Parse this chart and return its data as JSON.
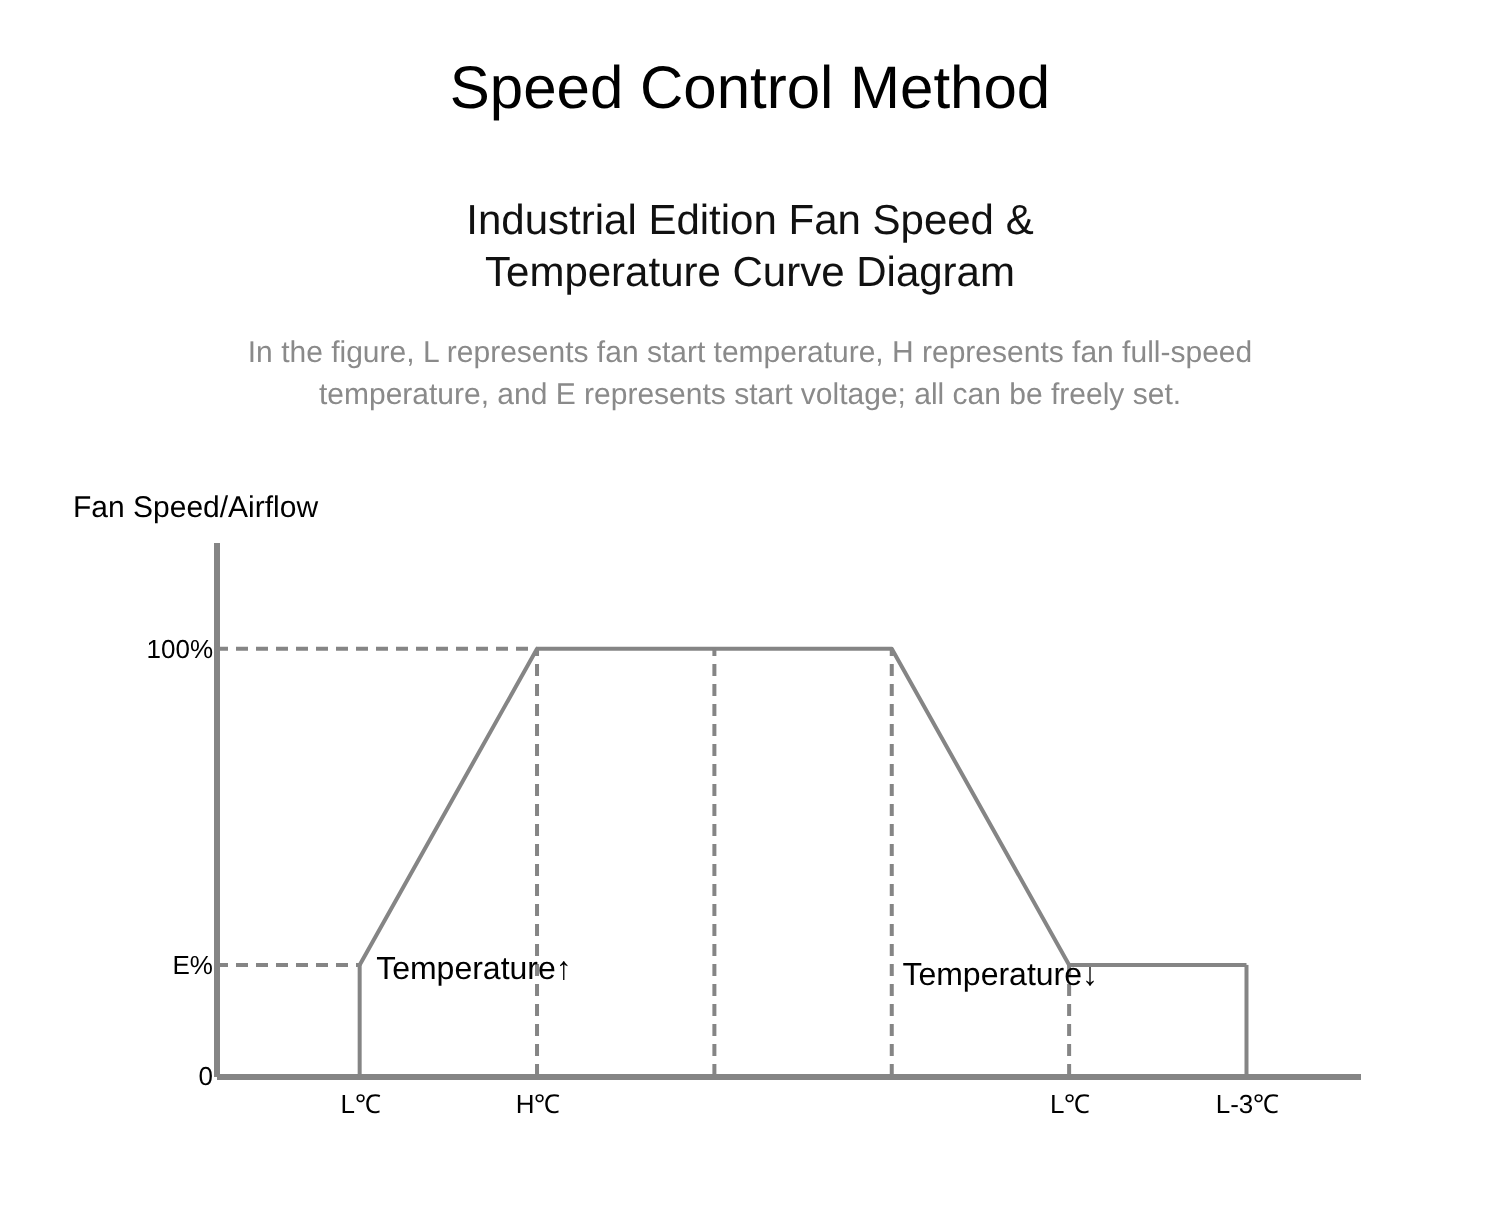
{
  "chart_data": {
    "type": "line",
    "title": "Speed Control Method",
    "subtitle": "Industrial Edition Fan Speed &\nTemperature Curve Diagram",
    "ylabel": "Fan Speed/Airflow",
    "annotations": [
      "In the figure, L represents fan start temperature, H represents fan full-speed\ntemperature, and E represents start voltage; all can be freely set.",
      "Temperature↑",
      "Temperature↓"
    ],
    "categories": [
      "L℃",
      "H℃",
      null,
      null,
      "L℃",
      "L-3℃"
    ],
    "ylim": [
      0,
      125
    ],
    "yticks": [
      {
        "value": 0,
        "label": "0"
      },
      {
        "value": 26,
        "label": "E%"
      },
      {
        "value": 100,
        "label": "100%"
      }
    ],
    "grid": "x",
    "marker": "none",
    "line_style": "solid",
    "series": [
      {
        "color": "#858585",
        "values": [
          26,
          100,
          100,
          100,
          26,
          26
        ]
      }
    ],
    "ref_lines": [
      {
        "axis": "y",
        "value": 26,
        "line_style": "dashed",
        "color": "#858585"
      },
      {
        "axis": "y",
        "value": 100,
        "line_style": "dashed",
        "color": "#858585"
      },
      {
        "axis": "x",
        "value": "L-3℃",
        "line_style": "solid",
        "color": "#858585"
      }
    ]
  }
}
